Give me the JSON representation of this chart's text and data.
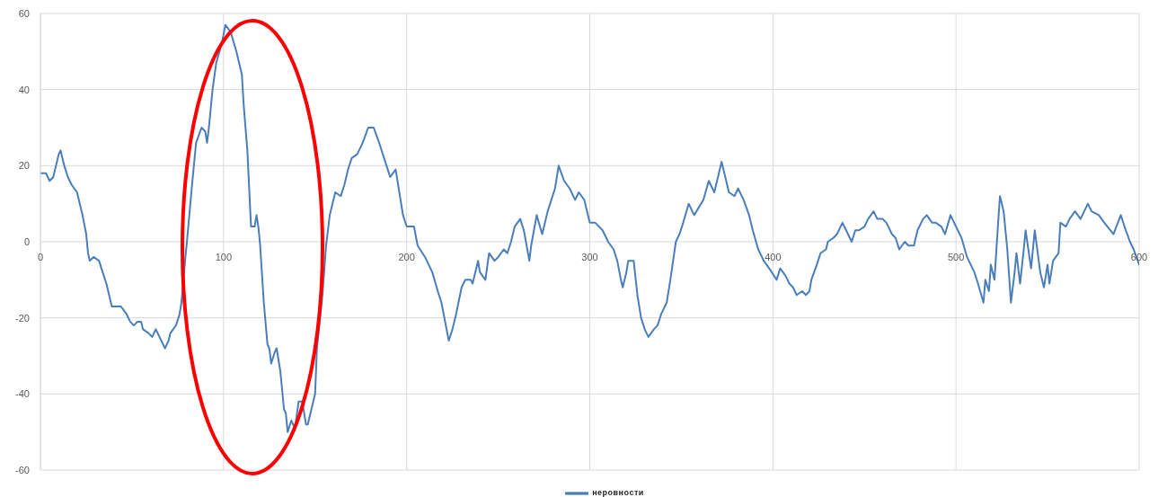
{
  "chart_data": {
    "type": "line",
    "x": [
      0,
      3,
      5,
      7,
      10,
      11,
      13,
      15,
      17,
      20,
      21,
      23,
      25,
      26,
      27,
      29,
      32,
      34,
      36,
      38,
      39,
      42,
      44,
      47,
      49,
      51,
      53,
      55,
      56,
      59,
      61,
      63,
      65,
      68,
      70,
      71,
      74,
      76,
      77,
      79,
      80,
      83,
      85,
      88,
      90,
      91,
      92,
      94,
      96,
      99,
      101,
      104,
      107,
      110,
      111,
      113,
      115,
      117,
      118,
      119,
      120,
      122,
      124,
      125,
      126,
      128,
      129,
      131,
      133,
      134,
      135,
      137,
      139,
      141,
      143,
      145,
      146,
      148,
      150,
      151,
      154,
      156,
      158,
      160,
      161,
      164,
      166,
      168,
      170,
      173,
      176,
      179,
      182,
      185,
      189,
      191,
      194,
      198,
      200,
      204,
      206,
      210,
      214,
      217,
      219,
      223,
      225,
      227,
      230,
      232,
      235,
      236,
      239,
      240,
      243,
      245,
      248,
      250,
      253,
      255,
      257,
      259,
      262,
      264,
      267,
      268,
      271,
      274,
      277,
      281,
      283,
      286,
      289,
      292,
      294,
      297,
      300,
      303,
      307,
      310,
      313,
      315,
      317,
      318,
      320,
      321,
      324,
      326,
      328,
      330,
      332,
      335,
      337,
      339,
      342,
      344,
      347,
      349,
      351,
      354,
      357,
      362,
      365,
      368,
      372,
      374,
      376,
      379,
      381,
      384,
      387,
      389,
      392,
      395,
      398,
      402,
      404,
      407,
      409,
      411,
      413,
      416,
      418,
      420,
      421,
      424,
      426,
      429,
      430,
      433,
      435,
      438,
      440,
      443,
      445,
      447,
      450,
      452,
      455,
      457,
      460,
      462,
      465,
      467,
      469,
      472,
      474,
      477,
      479,
      482,
      484,
      487,
      489,
      492,
      494,
      497,
      500,
      503,
      506,
      510,
      512,
      515,
      516,
      518,
      519,
      521,
      523,
      524,
      526,
      528,
      530,
      532,
      533,
      535,
      537,
      538,
      541,
      543,
      546,
      548,
      550,
      551,
      553,
      556,
      557,
      560,
      562,
      565,
      568,
      572,
      574,
      578,
      581,
      586,
      590,
      592,
      595,
      597,
      600
    ],
    "series": [
      {
        "name": "неровности",
        "color": "#4a7ebb",
        "values": [
          18,
          18,
          16,
          17,
          23,
          24,
          20,
          17,
          15,
          13,
          11,
          7,
          2,
          -3,
          -5,
          -4,
          -5,
          -8,
          -11,
          -15,
          -17,
          -17,
          -17,
          -19,
          -21,
          -22,
          -21,
          -21,
          -23,
          -24,
          -25,
          -23,
          -25,
          -28,
          -26,
          -24,
          -22,
          -19,
          -16,
          -5,
          0,
          16,
          26,
          30,
          29,
          26,
          30,
          40,
          47,
          52,
          57,
          55,
          50,
          44,
          36,
          24,
          4,
          4,
          7,
          4,
          -1,
          -16,
          -27,
          -28,
          -32,
          -29,
          -28,
          -34,
          -44,
          -45,
          -50,
          -47,
          -49,
          -42,
          -42,
          -48,
          -48,
          -44,
          -40,
          -28,
          -14,
          -1,
          7,
          11,
          13,
          12,
          15,
          19,
          22,
          23,
          26,
          30,
          30,
          26,
          20,
          17,
          19,
          7,
          4,
          4,
          -1,
          -4,
          -8,
          -13,
          -16,
          -26,
          -23,
          -19,
          -12,
          -10,
          -10,
          -11,
          -5,
          -8,
          -10,
          -3,
          -5,
          -4,
          -2,
          -3,
          0,
          4,
          6,
          3,
          -5,
          -1,
          7,
          2,
          8,
          14,
          20,
          16,
          14,
          11,
          13,
          11,
          5,
          5,
          3,
          0,
          -2,
          -5,
          -10,
          -12,
          -8,
          -5,
          -5,
          -14,
          -20,
          -23,
          -25,
          -23,
          -22,
          -19,
          -16,
          -10,
          0,
          2,
          5,
          10,
          7,
          11,
          16,
          13,
          21,
          17,
          13,
          12,
          14,
          11,
          7,
          3,
          -2,
          -5,
          -7,
          -10,
          -7,
          -9,
          -11,
          -12,
          -14,
          -13,
          -14,
          -13,
          -10,
          -6,
          -3,
          -2,
          0,
          1,
          2,
          5,
          3,
          0,
          3,
          3,
          4,
          6,
          8,
          6,
          6,
          5,
          2,
          1,
          -2,
          0,
          -1,
          -1,
          3,
          6,
          7,
          5,
          5,
          4,
          2,
          7,
          4,
          1,
          -4,
          -8,
          -11,
          -16,
          -10,
          -13,
          -6,
          -10,
          5,
          12,
          8,
          -2,
          -16,
          -8,
          -3,
          -11,
          -2,
          3,
          -7,
          3,
          -8,
          -12,
          -6,
          -11,
          -5,
          -3,
          5,
          4,
          6,
          8,
          6,
          10,
          8,
          7,
          5,
          2,
          7,
          4,
          0,
          -2,
          -6
        ]
      }
    ],
    "xlim": [
      0,
      600
    ],
    "xticks": [
      0,
      100,
      200,
      300,
      400,
      500,
      600
    ],
    "ylim": [
      -60,
      60
    ],
    "yticks": [
      -60,
      -40,
      -20,
      0,
      20,
      40,
      60
    ],
    "grid": true,
    "legend": "bottom"
  }
}
